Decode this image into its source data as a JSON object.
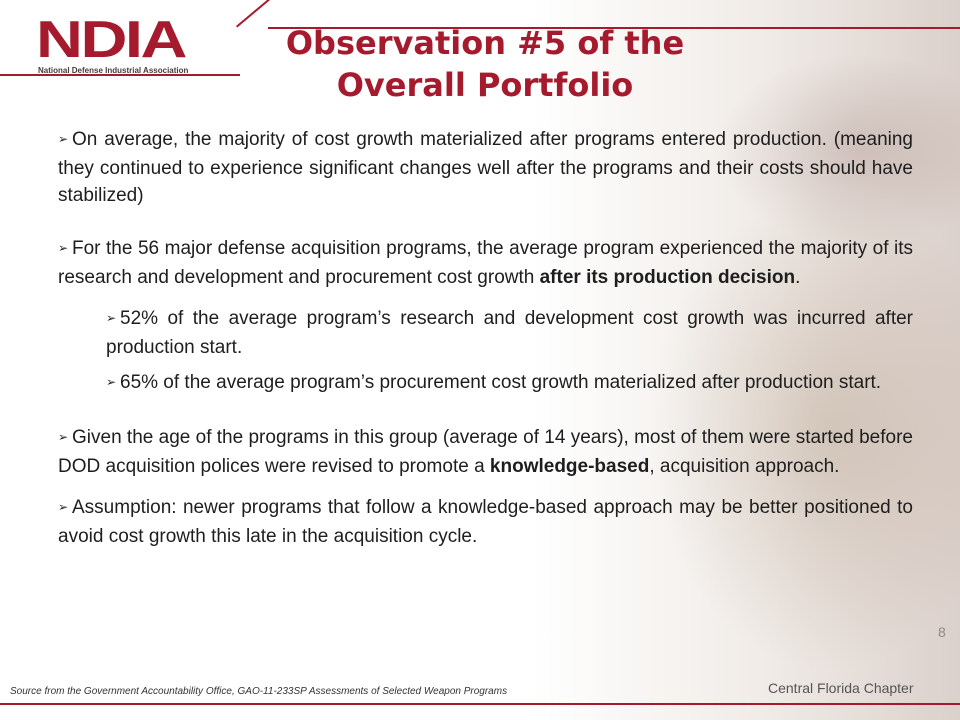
{
  "header": {
    "logo_text": "NDIA",
    "logo_subtitle": "National Defense Industrial Association",
    "title": "Observation #5 of the Overall Portfolio",
    "accent_color": "#a61a2e"
  },
  "bullet_icon": "arrow-bullet-icon",
  "bullet_glyph": "➢",
  "bullets": [
    {
      "text": "On average, the majority of cost growth materialized after programs entered production. (meaning they continued to experience significant changes well after the programs and their costs should have stabilized)"
    },
    {
      "text_before": "For the 56 major defense acquisition programs, the average program experienced  the majority of its research and development and procurement cost growth ",
      "bold": "after its production decision",
      "text_after": "."
    },
    {
      "text": "52% of the average program’s research and development cost growth was incurred after production start."
    },
    {
      "text": "65% of the average program’s procurement cost growth materialized after production start."
    },
    {
      "text_before": "Given the age of the programs in this group (average of 14 years), most of them were started before DOD acquisition polices were revised to promote a ",
      "bold": "knowledge-based",
      "text_after": ", acquisition approach."
    },
    {
      "text": "Assumption: newer programs that follow a knowledge-based approach may be better positioned to avoid cost growth this late in the acquisition cycle."
    }
  ],
  "footer": {
    "page_number": "8",
    "source": "Source from the Government Accountability Office, GAO-11-233SP Assessments of Selected Weapon Programs",
    "chapter": "Central Florida Chapter"
  }
}
